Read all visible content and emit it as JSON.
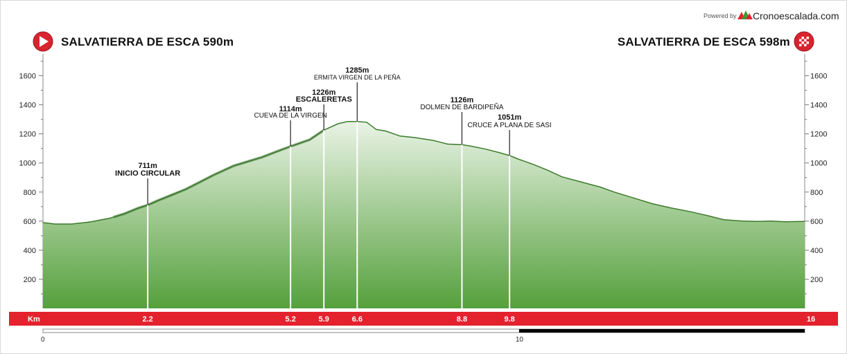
{
  "branding": {
    "powered_label": "Powered by",
    "site_name": "Cronoescalada.com",
    "logo_icon": "mountain-peaks-icon"
  },
  "header": {
    "start_label": "SALVATIERRA DE ESCA 590m",
    "start_icon": "play-start-icon",
    "end_label": "SALVATIERRA DE ESCA 598m",
    "end_icon": "checkered-finish-flag-icon"
  },
  "colors": {
    "profile_top": "#e9f3e5",
    "profile_bottom": "#55a03c",
    "profile_line": "#3c7a2b",
    "km_band": "#e4222e",
    "marker_icon": "#d9232f"
  },
  "chart_data": {
    "type": "area",
    "title": "",
    "xlabel": "Km",
    "ylabel": "",
    "xlim": [
      0,
      16
    ],
    "ylim": [
      0,
      1750
    ],
    "y_ticks": [
      200,
      400,
      600,
      800,
      1000,
      1200,
      1400,
      1600
    ],
    "grid": false,
    "series": [
      {
        "x": [
          0,
          0.25,
          0.6,
          1.0,
          1.4,
          1.7,
          2.0,
          2.2,
          2.4,
          2.7,
          3.0,
          3.3,
          3.6,
          4.0,
          4.3,
          4.6,
          5.0,
          5.2,
          5.6,
          5.9,
          6.2,
          6.4,
          6.6,
          6.8,
          7.0,
          7.2,
          7.5,
          7.8,
          8.2,
          8.5,
          8.8,
          9.0,
          9.3,
          9.6,
          9.8,
          10.0,
          10.3,
          10.6,
          10.9,
          11.3,
          11.7,
          12.0,
          12.4,
          12.8,
          13.2,
          13.6,
          14.0,
          14.3,
          14.7,
          15.0,
          15.3,
          15.6,
          16.0
        ],
        "y": [
          590,
          580,
          580,
          595,
          620,
          650,
          690,
          711,
          740,
          780,
          820,
          870,
          920,
          980,
          1010,
          1040,
          1090,
          1114,
          1160,
          1226,
          1270,
          1285,
          1285,
          1280,
          1230,
          1220,
          1185,
          1175,
          1155,
          1130,
          1126,
          1115,
          1095,
          1070,
          1051,
          1025,
          990,
          950,
          905,
          870,
          835,
          800,
          760,
          720,
          690,
          665,
          635,
          610,
          600,
          598,
          600,
          596,
          598
        ]
      }
    ],
    "waypoints": [
      {
        "km": 2.2,
        "km_label": "2.2",
        "elev_label": "711m",
        "name": "INICIO CIRCULAR"
      },
      {
        "km": 5.2,
        "km_label": "5.2",
        "elev_label": "1114m",
        "name": "CUEVA DE LA VIRGEN"
      },
      {
        "km": 5.9,
        "km_label": "5.9",
        "elev_label": "1226m",
        "name": "ESCALERETAS"
      },
      {
        "km": 6.6,
        "km_label": "6.6",
        "elev_label": "1285m",
        "name": "ERMITA VIRGEN DE LA PEÑA"
      },
      {
        "km": 8.8,
        "km_label": "8.8",
        "elev_label": "1126m",
        "name": "DOLMEN DE BARDIPEÑA"
      },
      {
        "km": 9.8,
        "km_label": "9.8",
        "elev_label": "1051m",
        "name": "CRUCE A PLANA DE SASI"
      }
    ],
    "km_band": {
      "label": "Km",
      "end_label": "16"
    },
    "scale_bar": {
      "max": 16,
      "labels": [
        0,
        10
      ]
    }
  }
}
